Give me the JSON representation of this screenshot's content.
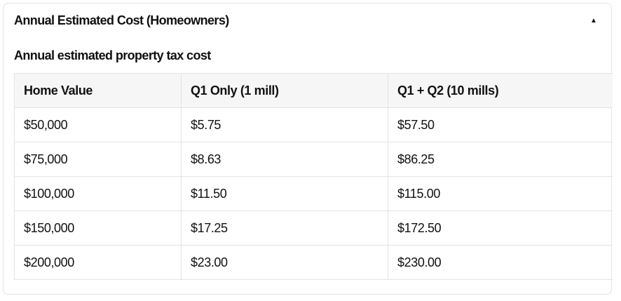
{
  "section": {
    "title": "Annual Estimated Cost (Homeowners)",
    "toggle_icon": "triangle-up-icon",
    "toggle_glyph": "▲"
  },
  "table": {
    "caption": "Annual estimated property tax cost",
    "headers": [
      "Home Value",
      "Q1 Only (1 mill)",
      "Q1 + Q2 (10 mills)"
    ],
    "rows": [
      [
        "$50,000",
        "$5.75",
        "$57.50"
      ],
      [
        "$75,000",
        "$8.63",
        "$86.25"
      ],
      [
        "$100,000",
        "$11.50",
        "$115.00"
      ],
      [
        "$150,000",
        "$17.25",
        "$172.50"
      ],
      [
        "$200,000",
        "$23.00",
        "$230.00"
      ]
    ]
  }
}
